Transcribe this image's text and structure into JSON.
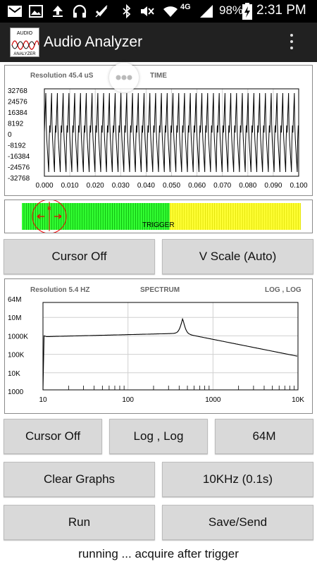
{
  "status_bar": {
    "battery": "98%",
    "time": "2:31 PM",
    "network": "4G",
    "icons": [
      "mail-icon",
      "image-icon",
      "upload-icon",
      "headset-icon",
      "checkbox-icon",
      "bluetooth-icon",
      "mute-icon",
      "wifi-icon",
      "signal-icon",
      "battery-charging-icon"
    ]
  },
  "app": {
    "title": "Audio Analyzer",
    "logo_lines": [
      "AUDIO",
      "ANALYZER"
    ]
  },
  "time_graph": {
    "resolution": "Resolution 45.4 uS",
    "title": "TIME",
    "y_ticks": [
      "32768",
      "24576",
      "16384",
      "8192",
      "0",
      "-8192",
      "-16384",
      "-24576",
      "-32768"
    ],
    "x_ticks": [
      "0.000",
      "0.010",
      "0.020",
      "0.030",
      "0.040",
      "0.050",
      "0.060",
      "0.070",
      "0.080",
      "0.090",
      "0.100"
    ],
    "cycles": 44
  },
  "trigger": {
    "label": "TRIGGER",
    "cursor_label": "R",
    "level_fraction": 0.53,
    "colors": {
      "left": "#33ff33",
      "right": "#ffff33",
      "lines": "#00a000"
    }
  },
  "buttons": {
    "cursor_off_1": "Cursor Off",
    "v_scale": "V Scale (Auto)",
    "cursor_off_2": "Cursor Off",
    "log_log": "Log , Log",
    "scale_64m": "64M",
    "clear_graphs": "Clear Graphs",
    "sample_rate": "10KHz (0.1s)",
    "run": "Run",
    "save_send": "Save/Send"
  },
  "spectrum_graph": {
    "resolution": "Resolution 5.4 HZ",
    "title": "SPECTRUM",
    "scale_label": "LOG , LOG",
    "y_ticks": [
      "64M",
      "10M",
      "1000K",
      "100K",
      "10K",
      "1000"
    ],
    "x_ticks": [
      "10",
      "100",
      "1000",
      "10K"
    ]
  },
  "status_message": "running ... acquire after trigger"
}
